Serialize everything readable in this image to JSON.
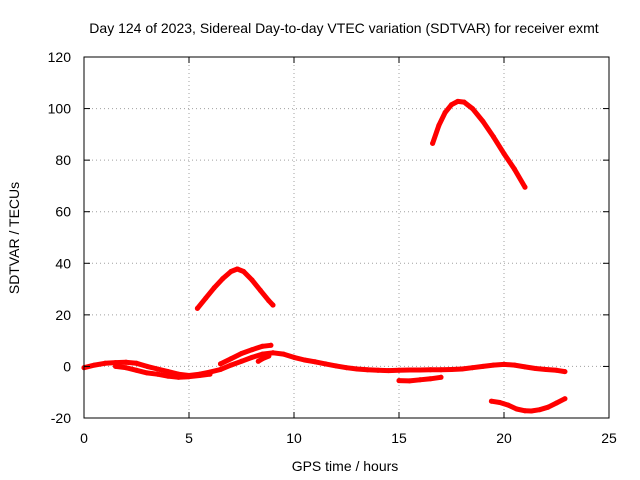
{
  "chart_data": {
    "type": "line",
    "title": "Day 124 of 2023, Sidereal Day-to-day VTEC variation (SDTVAR) for receiver exmt",
    "xlabel": "GPS time / hours",
    "ylabel": "SDTVAR / TECUs",
    "xlim": [
      0,
      25
    ],
    "ylim": [
      -20,
      120
    ],
    "x_ticks": [
      0,
      5,
      10,
      15,
      20,
      25
    ],
    "y_ticks": [
      -20,
      0,
      20,
      40,
      60,
      80,
      100,
      120
    ],
    "grid": true,
    "legend": "none",
    "series_color": "#ff0000",
    "series": [
      {
        "name": "arc-low-1",
        "x": [
          0,
          0.5,
          1,
          1.5,
          2,
          2.5,
          3,
          3.5,
          4,
          4.5,
          5,
          5.5,
          6,
          6.5,
          7,
          7.5,
          8,
          8.5,
          9,
          9.5,
          10,
          10.5,
          11,
          11.5,
          12,
          12.5,
          13,
          13.5,
          14,
          14.5,
          15,
          15.5,
          16,
          16.5,
          17,
          17.5,
          18,
          18.5,
          19,
          19.5,
          20,
          20.5,
          21,
          21.5,
          22,
          22.5,
          22.9
        ],
        "y": [
          -0.5,
          0.5,
          1.2,
          1.5,
          1.6,
          1.2,
          0,
          -1,
          -2,
          -3,
          -3.5,
          -3,
          -2.2,
          -1.2,
          0.5,
          2,
          3.5,
          4.8,
          5.3,
          4.8,
          3.5,
          2.5,
          1.8,
          1,
          0.2,
          -0.5,
          -1,
          -1.3,
          -1.5,
          -1.6,
          -1.5,
          -1.4,
          -1.4,
          -1.3,
          -1.3,
          -1.2,
          -1,
          -0.5,
          0,
          0.5,
          0.8,
          0.5,
          -0.2,
          -0.8,
          -1.2,
          -1.5,
          -2
        ]
      },
      {
        "name": "arc-low-2",
        "x": [
          1.5,
          2,
          2.5,
          3,
          3.5,
          4,
          4.5,
          5,
          5.5,
          6
        ],
        "y": [
          0,
          -0.5,
          -1.5,
          -2.5,
          -3,
          -3.8,
          -4.2,
          -4,
          -3.5,
          -3
        ]
      },
      {
        "name": "arc-low-3",
        "x": [
          6.5,
          7,
          7.5,
          8,
          8.5,
          8.9
        ],
        "y": [
          1,
          3,
          5,
          6.5,
          7.8,
          8.2
        ]
      },
      {
        "name": "arc-low-4",
        "x": [
          8.3,
          8.5,
          8.8
        ],
        "y": [
          2,
          3,
          4
        ]
      },
      {
        "name": "arc-low-5",
        "x": [
          15,
          15.5,
          16,
          16.5,
          17
        ],
        "y": [
          -5.5,
          -5.6,
          -5.2,
          -4.8,
          -4.2
        ]
      },
      {
        "name": "arc-mid",
        "x": [
          5.4,
          5.8,
          6.2,
          6.6,
          7.0,
          7.3,
          7.6,
          8.0,
          8.4,
          8.8,
          9.0
        ],
        "y": [
          22.5,
          26.5,
          30.5,
          34,
          36.8,
          37.8,
          36.8,
          33.5,
          29.5,
          25.5,
          23.8
        ]
      },
      {
        "name": "arc-high",
        "x": [
          16.6,
          16.9,
          17.2,
          17.5,
          17.8,
          18.1,
          18.5,
          19,
          19.5,
          20,
          20.5,
          21.0
        ],
        "y": [
          86.5,
          93.5,
          98.5,
          101.5,
          102.8,
          102.5,
          100,
          95,
          89,
          82.5,
          76.5,
          69.5
        ]
      },
      {
        "name": "arc-neg",
        "x": [
          19.4,
          19.8,
          20.2,
          20.6,
          21.0,
          21.3,
          21.7,
          22.1,
          22.5,
          22.9
        ],
        "y": [
          -13.5,
          -14,
          -15,
          -16.5,
          -17.2,
          -17.3,
          -16.8,
          -15.8,
          -14.2,
          -12.5
        ]
      }
    ]
  }
}
